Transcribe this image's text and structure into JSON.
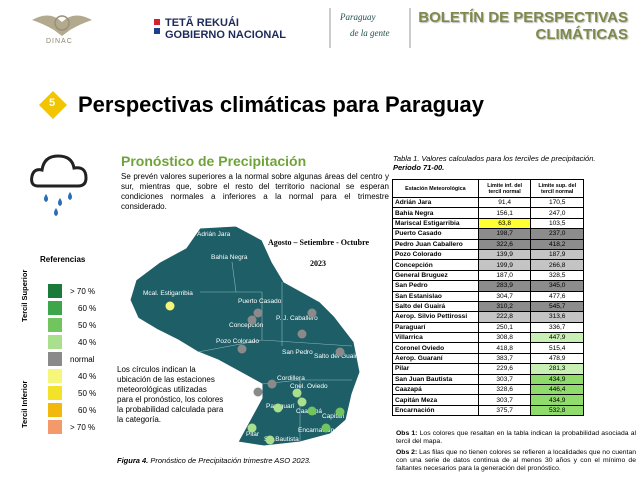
{
  "header": {
    "agency": "DINAC",
    "gov_line1": "TETÃ REKUÁI",
    "gov_line2": "GOBIERNO NACIONAL",
    "slogan_line1": "Paraguay",
    "slogan_line2": "de la gente",
    "bulletin_line1": "BOLETÍN DE PERSPECTIVAS",
    "bulletin_line2": "CLIMÁTICAS"
  },
  "section": {
    "number": "5",
    "title": "Perspectivas climáticas para Paraguay"
  },
  "forecast": {
    "title": "Pronóstico de Precipitación",
    "text": "Se prevén valores superiores a la normal sobre algunas áreas del centro y sur, mientras que, sobre el resto del territorio nacional se esperan condiciones normales a inferiores a la normal para el trimestre considerado."
  },
  "legend": {
    "title": "Referencias",
    "upper_label": "Tercil Superior",
    "lower_label": "Tercil Inferior",
    "items": [
      {
        "label": "> 70 %",
        "color": "#1b7a3a"
      },
      {
        "label": "60 %",
        "color": "#3da64b"
      },
      {
        "label": "50 %",
        "color": "#72c55e"
      },
      {
        "label": "40 %",
        "color": "#aadf8e"
      },
      {
        "label": "normal",
        "color": "#8a8a8a"
      },
      {
        "label": "40 %",
        "color": "#f6f67a"
      },
      {
        "label": "50 %",
        "color": "#f3e22a"
      },
      {
        "label": "60 %",
        "color": "#f2b90c"
      },
      {
        "label": "> 70 %",
        "color": "#f49a6a"
      }
    ]
  },
  "map": {
    "period": "Agosto – Setiembre - Octubre",
    "year": "2023",
    "labels": [
      "Adrián Jara",
      "Bahía Negra",
      "Mcal. Estigarribia",
      "Puerto Casado",
      "Concepción",
      "P. J. Caballero",
      "Pozo Colorado",
      "San Pedro",
      "Salto del Guairá",
      "Cordillera",
      "Cnel. Oviedo",
      "Paraguarí",
      "Caazapá",
      "Capitán",
      "Encarnación",
      "Pilar",
      "S.J.Bautista"
    ],
    "stations": [
      "#f6f67a",
      "#8a8a8a",
      "#8a8a8a",
      "#8a8a8a",
      "#8a8a8a",
      "#8a8a8a",
      "#8a8a8a",
      "#8a8a8a",
      "#8a8a8a",
      "#aadf8e",
      "#aadf8e",
      "#aadf8e",
      "#72c55e",
      "#72c55e",
      "#72c55e",
      "#aadf8e",
      "#aadf8e"
    ],
    "note": "Los círculos indican la ubicación de las estaciones meteorológicas utilizadas para el pronóstico, los colores la probabilidad calculada para la categoría.",
    "caption_label": "Figura 4.",
    "caption": "Pronóstico de Precipitación trimestre ASO 2023."
  },
  "table": {
    "caption": "Tabla 1. Valores calculados para los terciles de precipitación.",
    "period": "Periodo 71-00.",
    "headers": [
      "Estación Meteorológica",
      "Límite inf. del tercil normal",
      "Límite sup. del tercil normal"
    ],
    "rows": [
      {
        "name": "Adrián Jara",
        "lower": "91,4",
        "upper": "170,5"
      },
      {
        "name": "Bahía Negra",
        "lower": "156,1",
        "upper": "247,0"
      },
      {
        "name": "Mariscal Estigarribia",
        "lower": "63,8",
        "upper": "103,5",
        "lower_fill": "#ffff33"
      },
      {
        "name": "Puerto Casado",
        "lower": "198,7",
        "upper": "237,0",
        "lower_fill": "#8c8c8c",
        "upper_fill": "#8c8c8c"
      },
      {
        "name": "Pedro Juan Caballero",
        "lower": "322,6",
        "upper": "418,2",
        "lower_fill": "#8c8c8c",
        "upper_fill": "#8c8c8c"
      },
      {
        "name": "Pozo Colorado",
        "lower": "139,9",
        "upper": "187,9",
        "lower_fill": "#c4c4c4",
        "upper_fill": "#c4c4c4"
      },
      {
        "name": "Concepción",
        "lower": "199,9",
        "upper": "266,8",
        "lower_fill": "#c4c4c4",
        "upper_fill": "#c4c4c4"
      },
      {
        "name": "General Bruguez",
        "lower": "187,0",
        "upper": "328,5"
      },
      {
        "name": "San Pedro",
        "lower": "283,9",
        "upper": "345,0",
        "lower_fill": "#8c8c8c",
        "upper_fill": "#8c8c8c"
      },
      {
        "name": "San Estanislao",
        "lower": "304,7",
        "upper": "477,6"
      },
      {
        "name": "Salto del Guairá",
        "lower": "310,2",
        "upper": "545,7",
        "lower_fill": "#8c8c8c",
        "upper_fill": "#8c8c8c"
      },
      {
        "name": "Aerop. Silvio Pettirossi",
        "lower": "222,8",
        "upper": "313,6",
        "lower_fill": "#c4c4c4",
        "upper_fill": "#c4c4c4"
      },
      {
        "name": "Paraguarí",
        "lower": "250,1",
        "upper": "336,7"
      },
      {
        "name": "Villarrica",
        "lower": "308,8",
        "upper": "447,9",
        "upper_fill": "#c8f0b4"
      },
      {
        "name": "Coronel Oviedo",
        "lower": "418,8",
        "upper": "515,4"
      },
      {
        "name": "Aerop. Guaraní",
        "lower": "383,7",
        "upper": "478,9"
      },
      {
        "name": "Pilar",
        "lower": "229,6",
        "upper": "281,3",
        "upper_fill": "#c8f0b4"
      },
      {
        "name": "San Juan Bautista",
        "lower": "303,7",
        "upper": "434,9",
        "upper_fill": "#8fdc6c"
      },
      {
        "name": "Caazapá",
        "lower": "328,6",
        "upper": "446,4",
        "upper_fill": "#8fdc6c"
      },
      {
        "name": "Capitán Meza",
        "lower": "303,7",
        "upper": "434,9",
        "upper_fill": "#8fdc6c"
      },
      {
        "name": "Encarnación",
        "lower": "375,7",
        "upper": "532,8",
        "upper_fill": "#8fdc6c"
      }
    ]
  },
  "notes": [
    {
      "label": "Obs 1:",
      "text": "Los colores que resaltan en la tabla indican la probabilidad asociada al tercil del mapa."
    },
    {
      "label": "Obs 2:",
      "text": "Las filas que no tienen colores se refieren a localidades que no cuentan con una serie de datos continua de al menos 30 años y con el mínimo de faltantes necesarios para la generación del pronóstico."
    }
  ]
}
